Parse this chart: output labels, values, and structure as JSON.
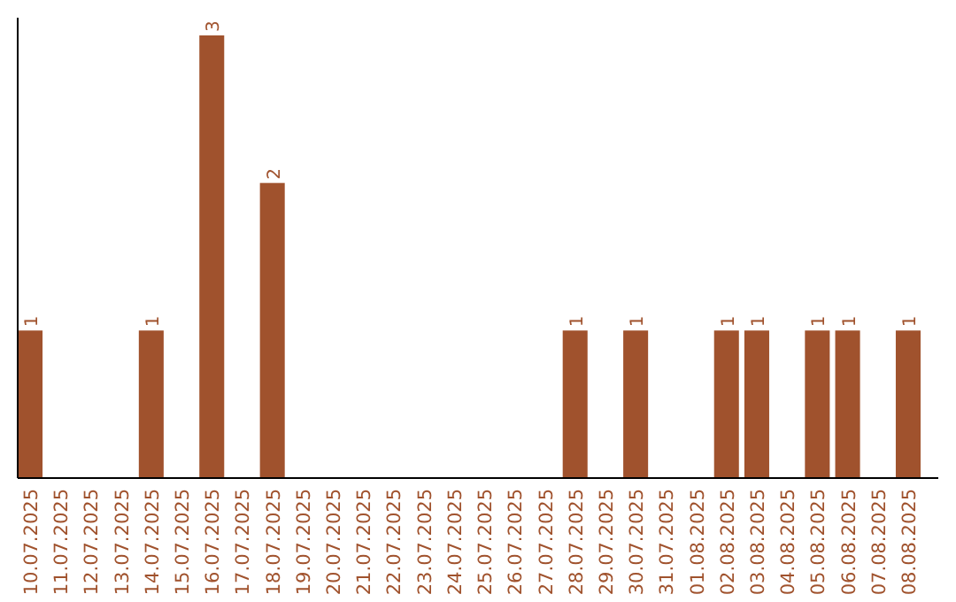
{
  "chart_data": {
    "type": "bar",
    "categories": [
      "10.07.2025",
      "11.07.2025",
      "12.07.2025",
      "13.07.2025",
      "14.07.2025",
      "15.07.2025",
      "16.07.2025",
      "17.07.2025",
      "18.07.2025",
      "19.07.2025",
      "20.07.2025",
      "21.07.2025",
      "22.07.2025",
      "23.07.2025",
      "24.07.2025",
      "25.07.2025",
      "26.07.2025",
      "27.07.2025",
      "28.07.2025",
      "29.07.2025",
      "30.07.2025",
      "31.07.2025",
      "01.08.2025",
      "02.08.2025",
      "03.08.2025",
      "04.08.2025",
      "05.08.2025",
      "06.08.2025",
      "07.08.2025",
      "08.08.2025"
    ],
    "values": [
      1,
      0,
      0,
      0,
      1,
      0,
      3,
      0,
      2,
      0,
      0,
      0,
      0,
      0,
      0,
      0,
      0,
      0,
      1,
      0,
      1,
      0,
      0,
      1,
      1,
      0,
      1,
      1,
      0,
      1
    ],
    "value_labels": [
      "1",
      null,
      null,
      null,
      "1",
      null,
      "3",
      null,
      "2",
      null,
      null,
      null,
      null,
      null,
      null,
      null,
      null,
      null,
      "1",
      null,
      "1",
      null,
      null,
      "1",
      "1",
      null,
      "1",
      "1",
      null,
      "1"
    ],
    "color": "#a0522d"
  }
}
